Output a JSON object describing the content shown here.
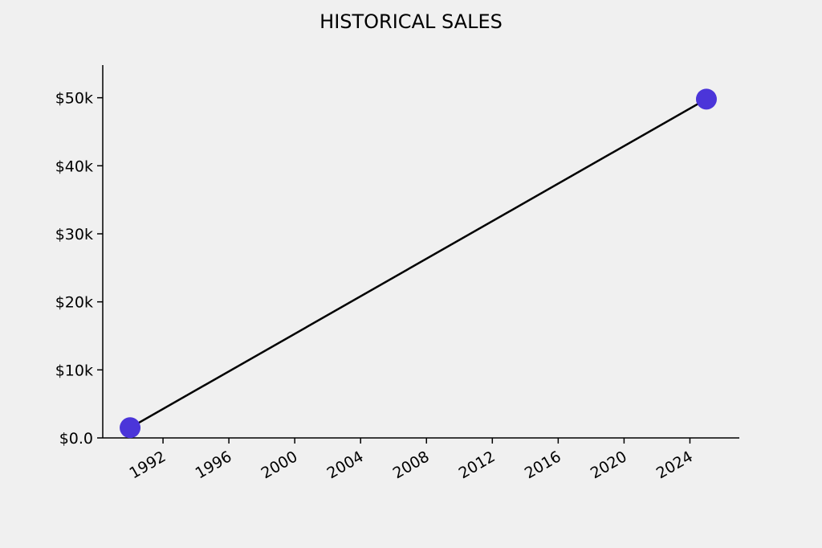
{
  "chart_data": {
    "type": "line",
    "title": "HISTORICAL SALES",
    "x": [
      1990,
      2025
    ],
    "values": [
      1500,
      49800
    ],
    "line_color": "#000000",
    "marker_color": "#4b35d9",
    "xlim": [
      1988.34,
      2027.0
    ],
    "xticks": [
      1992,
      1996,
      2000,
      2004,
      2008,
      2012,
      2016,
      2020,
      2024
    ],
    "ylim": [
      0,
      54800
    ],
    "yticks": [
      {
        "value": 0,
        "label": "$0.0"
      },
      {
        "value": 10000,
        "label": "$10k"
      },
      {
        "value": 20000,
        "label": "$20k"
      },
      {
        "value": 30000,
        "label": "$30k"
      },
      {
        "value": 40000,
        "label": "$40k"
      },
      {
        "value": 50000,
        "label": "$50k"
      }
    ],
    "grid": false
  }
}
